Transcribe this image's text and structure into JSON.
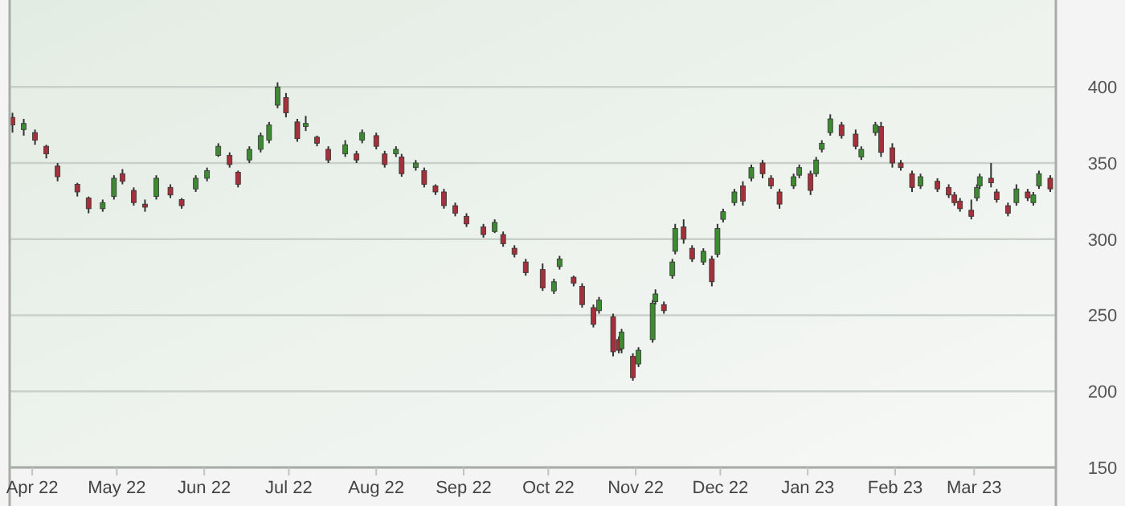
{
  "chart_data": {
    "type": "candlestick",
    "x": [
      "2022-03-25",
      "2022-03-29",
      "2022-04-02",
      "2022-04-06",
      "2022-04-10",
      "2022-04-17",
      "2022-04-21",
      "2022-04-26",
      "2022-04-30",
      "2022-05-03",
      "2022-05-07",
      "2022-05-11",
      "2022-05-15",
      "2022-05-20",
      "2022-05-24",
      "2022-05-29",
      "2022-06-02",
      "2022-06-06",
      "2022-06-10",
      "2022-06-13",
      "2022-06-17",
      "2022-06-21",
      "2022-06-24",
      "2022-06-27",
      "2022-06-30",
      "2022-07-04",
      "2022-07-07",
      "2022-07-11",
      "2022-07-15",
      "2022-07-21",
      "2022-07-25",
      "2022-07-27",
      "2022-08-01",
      "2022-08-04",
      "2022-08-08",
      "2022-08-10",
      "2022-08-15",
      "2022-08-18",
      "2022-08-22",
      "2022-08-25",
      "2022-08-29",
      "2022-09-02",
      "2022-09-08",
      "2022-09-12",
      "2022-09-15",
      "2022-09-19",
      "2022-09-23",
      "2022-09-29",
      "2022-10-03",
      "2022-10-05",
      "2022-10-10",
      "2022-10-13",
      "2022-10-17",
      "2022-10-19",
      "2022-10-24",
      "2022-10-26",
      "2022-10-27",
      "2022-10-31",
      "2022-11-02",
      "2022-11-07",
      "2022-11-08",
      "2022-11-11",
      "2022-11-14",
      "2022-11-15",
      "2022-11-18",
      "2022-11-21",
      "2022-11-25",
      "2022-11-28",
      "2022-11-30",
      "2022-12-02",
      "2022-12-06",
      "2022-12-09",
      "2022-12-12",
      "2022-12-16",
      "2022-12-19",
      "2022-12-22",
      "2022-12-27",
      "2022-12-29",
      "2023-01-02",
      "2023-01-04",
      "2023-01-06",
      "2023-01-09",
      "2023-01-13",
      "2023-01-18",
      "2023-01-20",
      "2023-01-25",
      "2023-01-27",
      "2023-01-31",
      "2023-02-03",
      "2023-02-07",
      "2023-02-10",
      "2023-02-16",
      "2023-02-20",
      "2023-02-22",
      "2023-02-24",
      "2023-02-28",
      "2023-03-02",
      "2023-03-03",
      "2023-03-07",
      "2023-03-09",
      "2023-03-13",
      "2023-03-16",
      "2023-03-20",
      "2023-03-22",
      "2023-03-24",
      "2023-03-28"
    ],
    "ohlc": [
      [
        380,
        383,
        370,
        375
      ],
      [
        372,
        379,
        368,
        376
      ],
      [
        370,
        372,
        362,
        365
      ],
      [
        361,
        362,
        353,
        356
      ],
      [
        348,
        350,
        338,
        341
      ],
      [
        336,
        337,
        328,
        331
      ],
      [
        327,
        328,
        317,
        320
      ],
      [
        320,
        326,
        318,
        324
      ],
      [
        328,
        342,
        326,
        340
      ],
      [
        343,
        346,
        336,
        338
      ],
      [
        332,
        334,
        322,
        324
      ],
      [
        323,
        326,
        318,
        321
      ],
      [
        328,
        342,
        326,
        340
      ],
      [
        334,
        336,
        327,
        329
      ],
      [
        326,
        327,
        320,
        322
      ],
      [
        333,
        342,
        331,
        340
      ],
      [
        340,
        347,
        338,
        345
      ],
      [
        355,
        363,
        354,
        361
      ],
      [
        355,
        357,
        347,
        349
      ],
      [
        344,
        345,
        334,
        336
      ],
      [
        352,
        361,
        350,
        359
      ],
      [
        359,
        370,
        357,
        368
      ],
      [
        365,
        377,
        363,
        375
      ],
      [
        388,
        403,
        386,
        400
      ],
      [
        393,
        396,
        380,
        383
      ],
      [
        377,
        379,
        364,
        366
      ],
      [
        374,
        381,
        371,
        376
      ],
      [
        367,
        368,
        361,
        363
      ],
      [
        359,
        361,
        350,
        352
      ],
      [
        356,
        365,
        354,
        362
      ],
      [
        356,
        358,
        350,
        352
      ],
      [
        365,
        372,
        363,
        370
      ],
      [
        368,
        370,
        359,
        361
      ],
      [
        356,
        358,
        347,
        349
      ],
      [
        356,
        361,
        354,
        359
      ],
      [
        354,
        356,
        341,
        343
      ],
      [
        347,
        352,
        345,
        350
      ],
      [
        345,
        347,
        334,
        336
      ],
      [
        335,
        336,
        329,
        331
      ],
      [
        331,
        333,
        320,
        322
      ],
      [
        322,
        324,
        315,
        317
      ],
      [
        315,
        317,
        308,
        310
      ],
      [
        308,
        310,
        301,
        303
      ],
      [
        305,
        313,
        304,
        311
      ],
      [
        303,
        305,
        295,
        297
      ],
      [
        294,
        296,
        288,
        290
      ],
      [
        285,
        287,
        276,
        278
      ],
      [
        280,
        284,
        266,
        268
      ],
      [
        266,
        274,
        264,
        272
      ],
      [
        282,
        289,
        280,
        287
      ],
      [
        275,
        276,
        269,
        271
      ],
      [
        269,
        271,
        255,
        257
      ],
      [
        255,
        257,
        242,
        244
      ],
      [
        253,
        262,
        251,
        260
      ],
      [
        249,
        251,
        223,
        226
      ],
      [
        234,
        236,
        225,
        227
      ],
      [
        228,
        241,
        225,
        239
      ],
      [
        223,
        225,
        207,
        209
      ],
      [
        218,
        229,
        216,
        227
      ],
      [
        234,
        260,
        232,
        258
      ],
      [
        259,
        267,
        257,
        264
      ],
      [
        257,
        259,
        251,
        253
      ],
      [
        276,
        287,
        274,
        285
      ],
      [
        292,
        310,
        290,
        307
      ],
      [
        308,
        313,
        297,
        300
      ],
      [
        294,
        296,
        285,
        287
      ],
      [
        285,
        294,
        283,
        292
      ],
      [
        287,
        289,
        269,
        272
      ],
      [
        290,
        310,
        288,
        307
      ],
      [
        313,
        320,
        311,
        318
      ],
      [
        324,
        333,
        322,
        331
      ],
      [
        335,
        338,
        322,
        325
      ],
      [
        340,
        349,
        338,
        347
      ],
      [
        350,
        352,
        340,
        343
      ],
      [
        340,
        342,
        333,
        335
      ],
      [
        331,
        333,
        320,
        323
      ],
      [
        335,
        343,
        333,
        341
      ],
      [
        342,
        349,
        340,
        347
      ],
      [
        343,
        345,
        329,
        332
      ],
      [
        343,
        354,
        341,
        352
      ],
      [
        359,
        365,
        357,
        363
      ],
      [
        370,
        382,
        368,
        379
      ],
      [
        375,
        377,
        366,
        368
      ],
      [
        369,
        372,
        359,
        361
      ],
      [
        354,
        361,
        352,
        359
      ],
      [
        370,
        377,
        368,
        375
      ],
      [
        374,
        377,
        354,
        357
      ],
      [
        360,
        363,
        347,
        350
      ],
      [
        350,
        352,
        345,
        347
      ],
      [
        343,
        345,
        331,
        334
      ],
      [
        335,
        343,
        333,
        341
      ],
      [
        338,
        340,
        331,
        333
      ],
      [
        334,
        336,
        327,
        329
      ],
      [
        329,
        331,
        322,
        324
      ],
      [
        325,
        327,
        318,
        320
      ],
      [
        319,
        326,
        313,
        315
      ],
      [
        327,
        336,
        325,
        334
      ],
      [
        335,
        343,
        333,
        341
      ],
      [
        340,
        350,
        334,
        337
      ],
      [
        331,
        333,
        324,
        326
      ],
      [
        322,
        324,
        315,
        317
      ],
      [
        324,
        336,
        322,
        333
      ],
      [
        331,
        333,
        325,
        327
      ],
      [
        324,
        331,
        322,
        329
      ],
      [
        335,
        345,
        333,
        343
      ],
      [
        340,
        342,
        331,
        333
      ]
    ],
    "xlim": [
      "2022-03-24",
      "2023-03-30"
    ],
    "xticks": [
      {
        "value": "2022-04-01",
        "label": "Apr 22"
      },
      {
        "value": "2022-05-01",
        "label": "May 22"
      },
      {
        "value": "2022-06-01",
        "label": "Jun 22"
      },
      {
        "value": "2022-07-01",
        "label": "Jul 22"
      },
      {
        "value": "2022-08-01",
        "label": "Aug 22"
      },
      {
        "value": "2022-09-01",
        "label": "Sep 22"
      },
      {
        "value": "2022-10-01",
        "label": "Oct 22"
      },
      {
        "value": "2022-11-01",
        "label": "Nov 22"
      },
      {
        "value": "2022-12-01",
        "label": "Dec 22"
      },
      {
        "value": "2023-01-01",
        "label": "Jan 23"
      },
      {
        "value": "2023-02-01",
        "label": "Feb 23"
      },
      {
        "value": "2023-03-01",
        "label": "Mar 23"
      }
    ],
    "ylim": [
      150,
      455
    ],
    "yticks": [
      150,
      200,
      250,
      300,
      350,
      400
    ],
    "grid": "y"
  }
}
